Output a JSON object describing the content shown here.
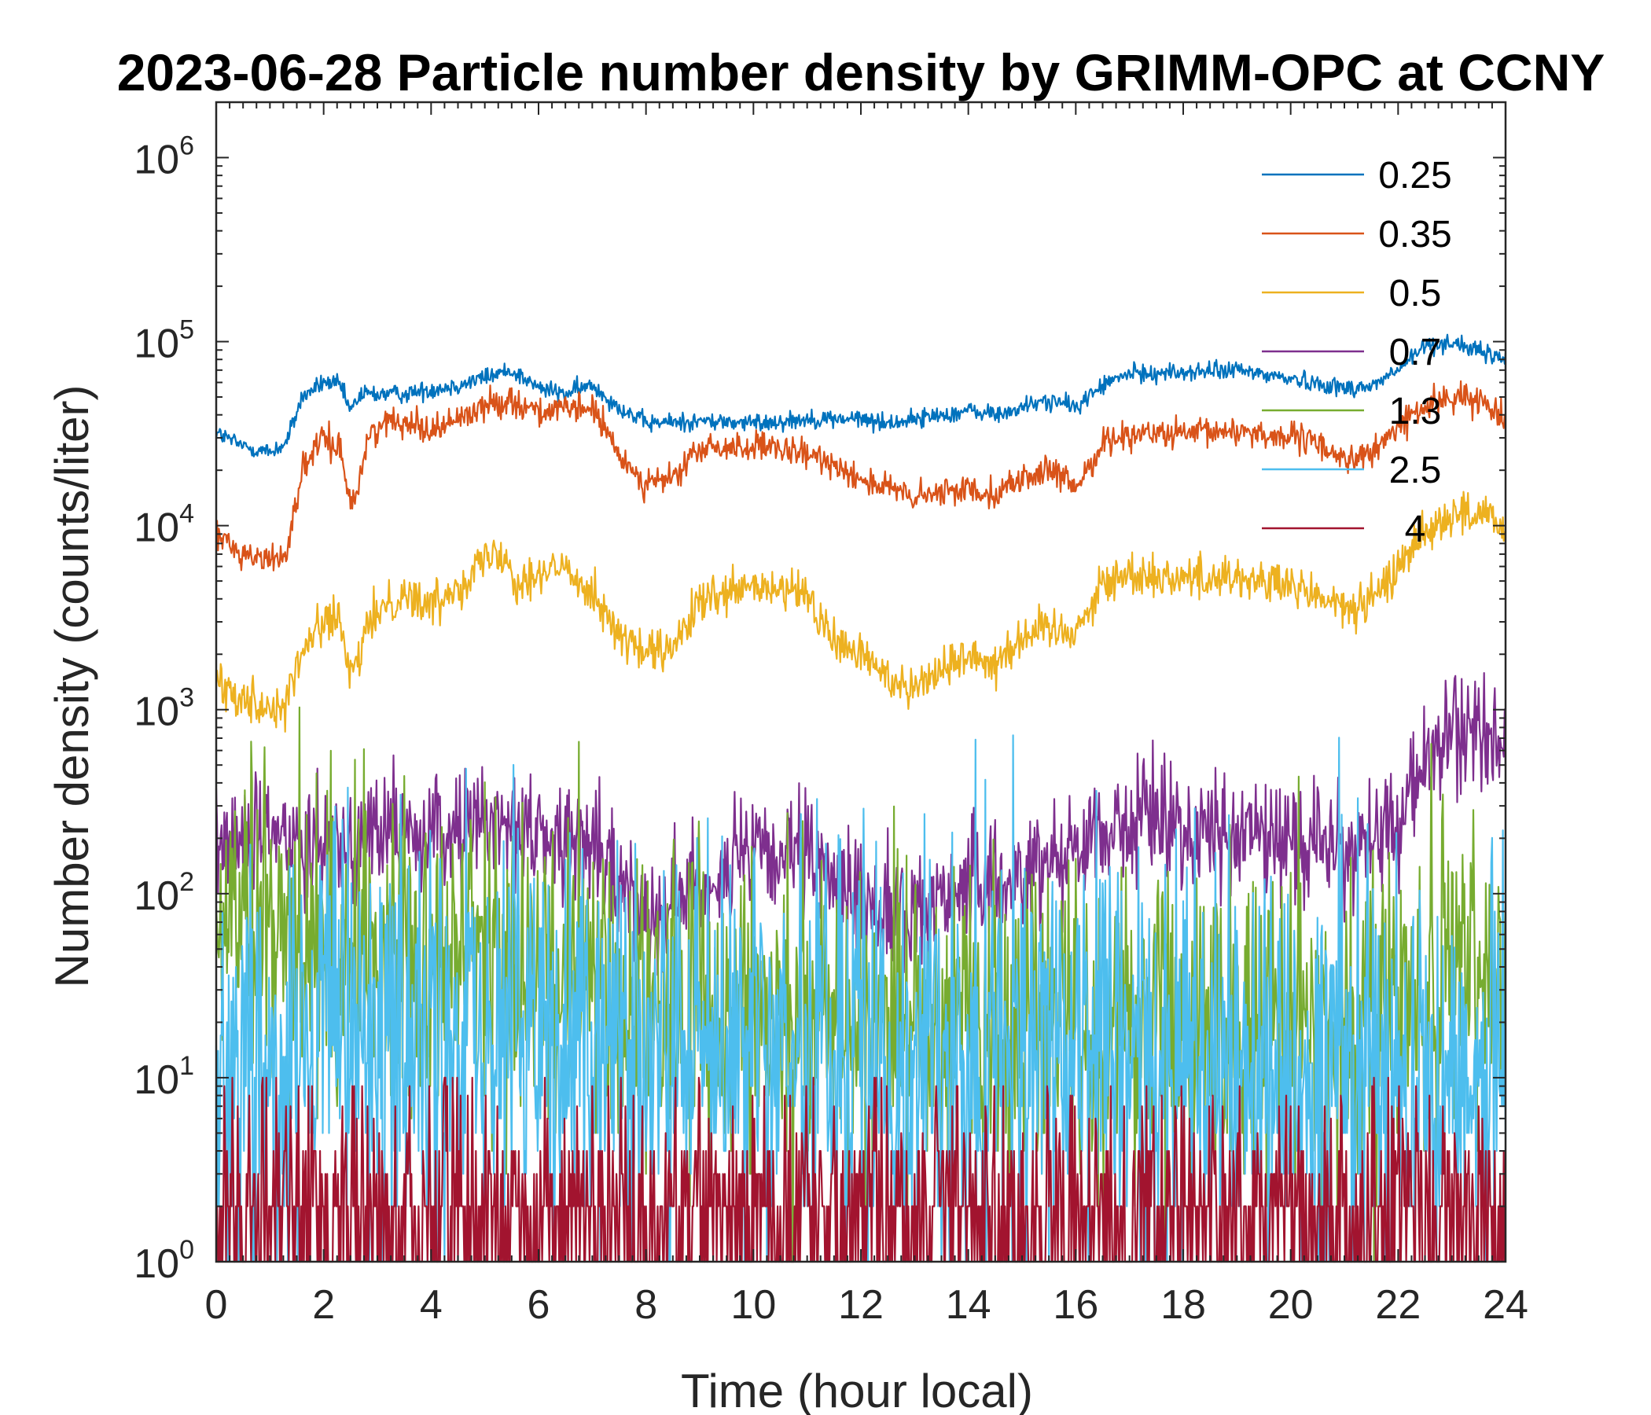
{
  "chart_data": {
    "type": "line",
    "title": "2023-06-28 Particle number density by GRIMM-OPC at CCNY",
    "xlabel": "Time (hour local)",
    "ylabel": "Number density (counts/liter)",
    "xlim": [
      0,
      24
    ],
    "ylim": [
      1,
      2000000
    ],
    "yscale": "log",
    "xticks": [
      "0",
      "2",
      "4",
      "6",
      "8",
      "10",
      "12",
      "14",
      "16",
      "18",
      "20",
      "22",
      "24"
    ],
    "yticks": [
      {
        "base": "10",
        "exp": "0"
      },
      {
        "base": "10",
        "exp": "1"
      },
      {
        "base": "10",
        "exp": "2"
      },
      {
        "base": "10",
        "exp": "3"
      },
      {
        "base": "10",
        "exp": "4"
      },
      {
        "base": "10",
        "exp": "5"
      },
      {
        "base": "10",
        "exp": "6"
      }
    ],
    "legend_position": "top-right",
    "series": [
      {
        "name": "0.25",
        "color": "#0072BD",
        "noise": 0.025,
        "x": [
          0,
          0.5,
          1.0,
          1.3,
          1.6,
          2.0,
          2.3,
          2.5,
          2.7,
          3.0,
          3.5,
          4.0,
          4.5,
          5.0,
          5.5,
          6.0,
          6.5,
          7.0,
          7.5,
          8.0,
          9.0,
          10.0,
          11.0,
          12.0,
          12.5,
          13.0,
          14.0,
          14.6,
          15.0,
          15.5,
          16.0,
          16.5,
          17.0,
          18.0,
          19.0,
          20.0,
          21.0,
          21.5,
          22.0,
          22.5,
          23.0,
          23.5,
          24.0
        ],
        "y": [
          32000,
          27000,
          25000,
          28000,
          50000,
          60000,
          58000,
          42000,
          52000,
          52000,
          52000,
          55000,
          58000,
          64000,
          70000,
          56000,
          52000,
          58000,
          44000,
          36000,
          37000,
          36000,
          38000,
          38000,
          36000,
          38000,
          42000,
          40000,
          44000,
          48000,
          44000,
          58000,
          67000,
          68000,
          70000,
          63000,
          56000,
          57000,
          70000,
          95000,
          100000,
          88000,
          80000
        ]
      },
      {
        "name": "0.35",
        "color": "#D95319",
        "noise": 0.04,
        "x": [
          0,
          0.5,
          1.0,
          1.3,
          1.6,
          2.0,
          2.3,
          2.5,
          2.6,
          2.8,
          3.0,
          3.5,
          4.0,
          4.5,
          5.0,
          5.5,
          6.0,
          6.5,
          7.0,
          7.5,
          8.0,
          8.5,
          9.0,
          10.0,
          11.0,
          11.5,
          12.0,
          12.5,
          13.0,
          13.5,
          14.0,
          14.5,
          15.0,
          15.5,
          16.0,
          16.5,
          17.0,
          18.0,
          19.0,
          20.0,
          20.5,
          21.0,
          21.5,
          22.0,
          22.5,
          23.0,
          23.5,
          24.0
        ],
        "y": [
          9000,
          7000,
          6500,
          7000,
          20000,
          30000,
          26000,
          14000,
          14000,
          28000,
          35000,
          38000,
          33000,
          38000,
          45000,
          48000,
          42000,
          42000,
          44000,
          24000,
          17000,
          18000,
          26000,
          27000,
          24000,
          22000,
          18000,
          16000,
          14000,
          15000,
          16000,
          15000,
          18000,
          20000,
          16000,
          28000,
          32000,
          31000,
          33000,
          30000,
          28000,
          23000,
          24000,
          35000,
          44000,
          50000,
          48000,
          40000
        ]
      },
      {
        "name": "0.5",
        "color": "#EDB120",
        "noise": 0.06,
        "x": [
          0,
          0.5,
          1.0,
          1.3,
          1.6,
          2.0,
          2.3,
          2.5,
          2.7,
          3.0,
          3.5,
          4.0,
          4.5,
          5.0,
          5.3,
          5.6,
          6.0,
          6.5,
          7.0,
          7.5,
          8.0,
          8.5,
          9.0,
          10.0,
          11.0,
          11.5,
          12.0,
          12.5,
          13.0,
          13.5,
          14.0,
          14.5,
          15.0,
          15.5,
          16.0,
          16.5,
          17.0,
          18.0,
          19.0,
          20.0,
          20.5,
          21.0,
          21.5,
          22.0,
          22.5,
          23.0,
          23.5,
          24.0
        ],
        "y": [
          1400,
          1200,
          1000,
          1100,
          2000,
          3200,
          3000,
          1400,
          2200,
          3500,
          4300,
          3600,
          4800,
          6500,
          7500,
          5000,
          5500,
          5800,
          4500,
          2500,
          2000,
          2100,
          3800,
          4600,
          4200,
          2300,
          2000,
          1500,
          1350,
          1650,
          2000,
          1800,
          2500,
          2800,
          2700,
          4800,
          5500,
          5200,
          5300,
          4600,
          4200,
          3500,
          3800,
          6000,
          9500,
          11500,
          11500,
          9500
        ]
      },
      {
        "name": "0.7",
        "color": "#7E2F8E",
        "noise": 0.16,
        "x": [
          0,
          1.0,
          2.0,
          2.5,
          3.0,
          4.0,
          5.0,
          5.5,
          6.0,
          7.0,
          7.5,
          8.0,
          8.5,
          9.0,
          10.0,
          11.0,
          11.5,
          12.0,
          12.5,
          13.0,
          13.5,
          14.0,
          14.5,
          15.0,
          16.0,
          17.0,
          17.5,
          18.0,
          19.0,
          20.0,
          21.0,
          21.5,
          22.0,
          22.3,
          22.7,
          23.0,
          23.5,
          24.0
        ],
        "y": [
          180,
          200,
          210,
          190,
          230,
          200,
          240,
          270,
          200,
          180,
          110,
          85,
          90,
          110,
          160,
          150,
          120,
          95,
          80,
          75,
          100,
          110,
          110,
          130,
          190,
          240,
          280,
          220,
          210,
          200,
          180,
          190,
          230,
          400,
          600,
          700,
          800,
          620
        ]
      },
      {
        "name": "1.3",
        "color": "#77AC30",
        "noise": 0.45,
        "x": [
          0,
          2.0,
          4.0,
          6.0,
          7.0,
          8.0,
          10.0,
          12.0,
          14.0,
          16.0,
          18.0,
          20.0,
          22.0,
          23.0,
          24.0
        ],
        "y": [
          65,
          55,
          48,
          40,
          32,
          25,
          24,
          22,
          22,
          20,
          20,
          20,
          22,
          35,
          30
        ]
      },
      {
        "name": "2.5",
        "color": "#4DBEEE",
        "noise": 0.6,
        "x": [
          0,
          2.0,
          4.0,
          6.0,
          8.0,
          10.0,
          12.0,
          14.0,
          16.0,
          18.0,
          20.0,
          22.0,
          24.0
        ],
        "y": [
          12,
          15,
          16,
          16,
          14,
          14,
          13,
          13,
          12,
          12,
          12,
          11,
          11
        ]
      },
      {
        "name": "4",
        "color": "#A2142F",
        "noise": 0,
        "x": [
          0,
          24
        ],
        "y": [
          2,
          2
        ]
      }
    ]
  }
}
